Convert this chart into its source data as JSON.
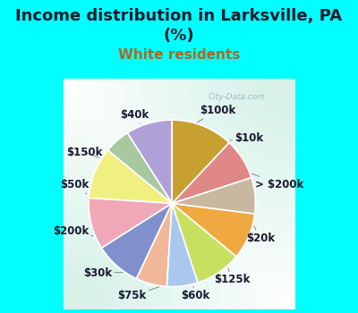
{
  "title": "Income distribution in Larksville, PA\n(%)",
  "subtitle": "White residents",
  "background_color": "#00FFFF",
  "labels": [
    "$100k",
    "$10k",
    "> $200k",
    "$20k",
    "$125k",
    "$60k",
    "$75k",
    "$30k",
    "$200k",
    "$50k",
    "$150k",
    "$40k"
  ],
  "sizes": [
    9,
    5,
    10,
    10,
    9,
    6,
    6,
    9,
    9,
    7,
    8,
    12
  ],
  "colors": [
    "#b0a0d8",
    "#a8c8a0",
    "#f0f080",
    "#f0a8b8",
    "#8090cc",
    "#f0b898",
    "#a8c8f0",
    "#c8e060",
    "#f0a840",
    "#c8b8a0",
    "#e08888",
    "#c8a030"
  ],
  "startangle": 90,
  "title_fontsize": 13,
  "subtitle_fontsize": 11,
  "label_fontsize": 8.5
}
